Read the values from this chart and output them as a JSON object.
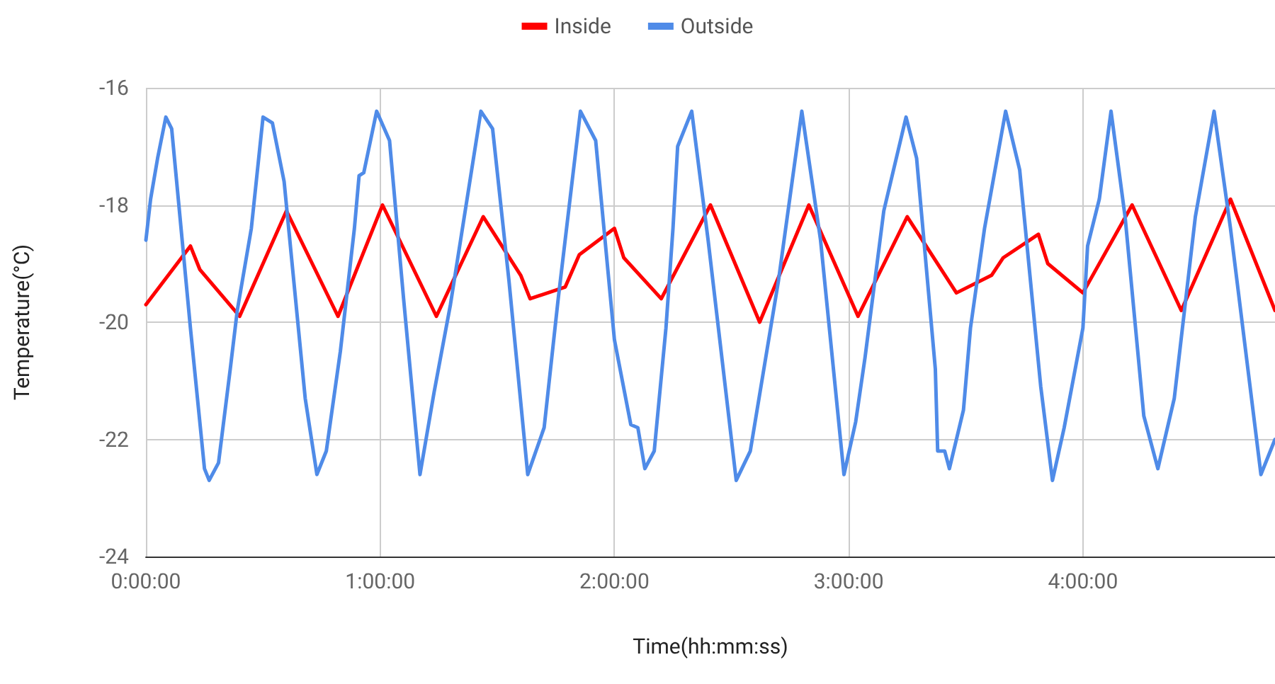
{
  "chart_data": {
    "type": "line",
    "xlabel": "Time(hh:mm:ss)",
    "ylabel": "Temperature(°C)",
    "xlim": [
      0,
      4.82
    ],
    "xticks": [
      {
        "value": 0,
        "label": "0:00:00"
      },
      {
        "value": 1,
        "label": "1:00:00"
      },
      {
        "value": 2,
        "label": "2:00:00"
      },
      {
        "value": 3,
        "label": "3:00:00"
      },
      {
        "value": 4,
        "label": "4:00:00"
      }
    ],
    "ylim": [
      -24,
      -16
    ],
    "yticks": [
      -24,
      -22,
      -20,
      -18,
      -16
    ],
    "grid": true,
    "legend": "top",
    "marker": "none",
    "line_style": "solid",
    "series": [
      {
        "name": "Inside",
        "color": "#ff0000",
        "x": [
          0,
          0.19,
          0.23,
          0.4,
          0.6,
          0.82,
          1.01,
          1.24,
          1.44,
          1.6,
          1.64,
          1.79,
          1.85,
          2.0,
          2.04,
          2.2,
          2.41,
          2.62,
          2.83,
          3.04,
          3.25,
          3.46,
          3.61,
          3.66,
          3.81,
          3.85,
          4.0,
          4.21,
          4.42,
          4.63,
          4.82
        ],
        "values": [
          -19.7,
          -18.7,
          -19.1,
          -19.9,
          -18.1,
          -19.9,
          -18.0,
          -19.9,
          -18.2,
          -19.2,
          -19.6,
          -19.4,
          -18.85,
          -18.4,
          -18.9,
          -19.6,
          -18.0,
          -20.0,
          -18.0,
          -19.9,
          -18.2,
          -19.5,
          -19.2,
          -18.9,
          -18.5,
          -19.0,
          -19.5,
          -18.0,
          -19.8,
          -17.9,
          -19.8
        ]
      },
      {
        "name": "Outside",
        "color": "#4f8be8",
        "x": [
          0,
          0.02,
          0.05,
          0.085,
          0.11,
          0.19,
          0.25,
          0.27,
          0.31,
          0.36,
          0.39,
          0.45,
          0.5,
          0.54,
          0.59,
          0.68,
          0.73,
          0.77,
          0.83,
          0.89,
          0.91,
          0.93,
          0.985,
          1.04,
          1.1,
          1.17,
          1.23,
          1.3,
          1.43,
          1.48,
          1.55,
          1.63,
          1.7,
          1.76,
          1.855,
          1.92,
          2.0,
          2.07,
          2.1,
          2.13,
          2.17,
          2.22,
          2.25,
          2.27,
          2.33,
          2.4,
          2.52,
          2.58,
          2.7,
          2.8,
          2.88,
          2.98,
          3.03,
          3.07,
          3.15,
          3.245,
          3.29,
          3.37,
          3.38,
          3.41,
          3.43,
          3.49,
          3.52,
          3.58,
          3.67,
          3.73,
          3.82,
          3.87,
          3.92,
          4.0,
          4.02,
          4.07,
          4.12,
          4.18,
          4.26,
          4.32,
          4.39,
          4.48,
          4.56,
          4.63,
          4.76,
          4.82
        ],
        "values": [
          -18.6,
          -17.9,
          -17.2,
          -16.5,
          -16.7,
          -20.1,
          -22.5,
          -22.7,
          -22.4,
          -20.8,
          -19.8,
          -18.4,
          -16.5,
          -16.6,
          -17.6,
          -21.3,
          -22.6,
          -22.2,
          -20.5,
          -18.4,
          -17.5,
          -17.45,
          -16.4,
          -16.9,
          -19.6,
          -22.6,
          -21.2,
          -19.7,
          -16.4,
          -16.7,
          -19.3,
          -22.6,
          -21.8,
          -19.6,
          -16.4,
          -16.9,
          -20.3,
          -21.75,
          -21.8,
          -22.5,
          -22.2,
          -20.1,
          -18.4,
          -17.0,
          -16.4,
          -18.6,
          -22.7,
          -22.2,
          -19.3,
          -16.4,
          -18.6,
          -22.6,
          -21.7,
          -20.6,
          -18.1,
          -16.5,
          -17.2,
          -20.8,
          -22.2,
          -22.2,
          -22.5,
          -21.5,
          -20.1,
          -18.4,
          -16.4,
          -17.4,
          -21.1,
          -22.7,
          -21.8,
          -20.1,
          -18.7,
          -17.9,
          -16.4,
          -18.2,
          -21.6,
          -22.5,
          -21.3,
          -18.2,
          -16.4,
          -18.4,
          -22.6,
          -22.0
        ]
      }
    ]
  }
}
